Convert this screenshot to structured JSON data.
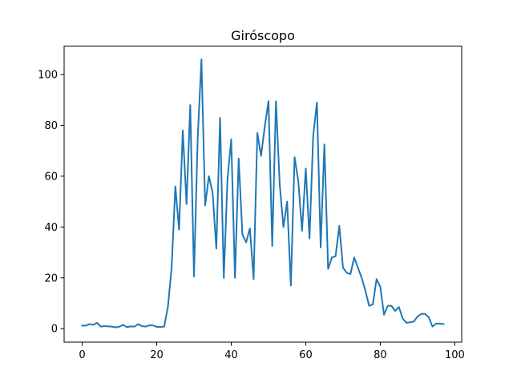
{
  "chart_data": {
    "type": "line",
    "title": "Giróscopo",
    "xlabel": "",
    "ylabel": "",
    "xlim": [
      -4.85,
      101.85
    ],
    "ylim": [
      -5.3,
      111.2
    ],
    "xticks": [
      0,
      20,
      40,
      60,
      80,
      100
    ],
    "yticks": [
      0,
      20,
      40,
      60,
      80,
      100
    ],
    "grid": false,
    "series": [
      {
        "color": "#1f77b4",
        "x": [
          0,
          1,
          2,
          3,
          4,
          5,
          6,
          7,
          8,
          9,
          10,
          11,
          12,
          13,
          14,
          15,
          16,
          17,
          18,
          19,
          20,
          21,
          22,
          23,
          24,
          25,
          26,
          27,
          28,
          29,
          30,
          31,
          32,
          33,
          34,
          35,
          36,
          37,
          38,
          39,
          40,
          41,
          42,
          43,
          44,
          45,
          46,
          47,
          48,
          49,
          50,
          51,
          52,
          53,
          54,
          55,
          56,
          57,
          58,
          59,
          60,
          61,
          62,
          63,
          64,
          65,
          66,
          67,
          68,
          69,
          70,
          71,
          72,
          73,
          74,
          75,
          76,
          77,
          78,
          79,
          80,
          81,
          82,
          83,
          84,
          85,
          86,
          87,
          88,
          89,
          90,
          91,
          92,
          93,
          94,
          95,
          96,
          97
        ],
        "values": [
          1.2,
          1.2,
          1.8,
          1.5,
          2.3,
          0.8,
          1.0,
          0.9,
          0.8,
          0.5,
          0.8,
          1.5,
          0.6,
          0.9,
          0.8,
          1.8,
          1.0,
          0.8,
          1.3,
          1.3,
          0.7,
          0.7,
          0.8,
          8.5,
          24.0,
          56.0,
          39.0,
          78.0,
          49.0,
          88.0,
          20.5,
          75.0,
          106.0,
          48.5,
          60.0,
          53.5,
          31.5,
          83.0,
          20.0,
          59.0,
          74.5,
          20.0,
          67.0,
          37.0,
          34.0,
          39.5,
          19.5,
          77.0,
          68.0,
          79.5,
          89.5,
          32.5,
          89.5,
          57.0,
          40.0,
          50.0,
          17.0,
          67.5,
          58.0,
          38.5,
          63.0,
          35.5,
          76.0,
          89.0,
          32.0,
          72.5,
          23.5,
          28.0,
          28.5,
          40.5,
          24.0,
          22.0,
          21.5,
          28.0,
          24.0,
          20.0,
          15.0,
          9.0,
          9.5,
          19.5,
          16.5,
          5.5,
          9.0,
          9.0,
          7.0,
          8.5,
          4.0,
          2.3,
          2.5,
          2.8,
          4.8,
          5.8,
          5.8,
          4.5,
          0.8,
          2.0,
          2.0,
          1.8
        ]
      }
    ]
  }
}
